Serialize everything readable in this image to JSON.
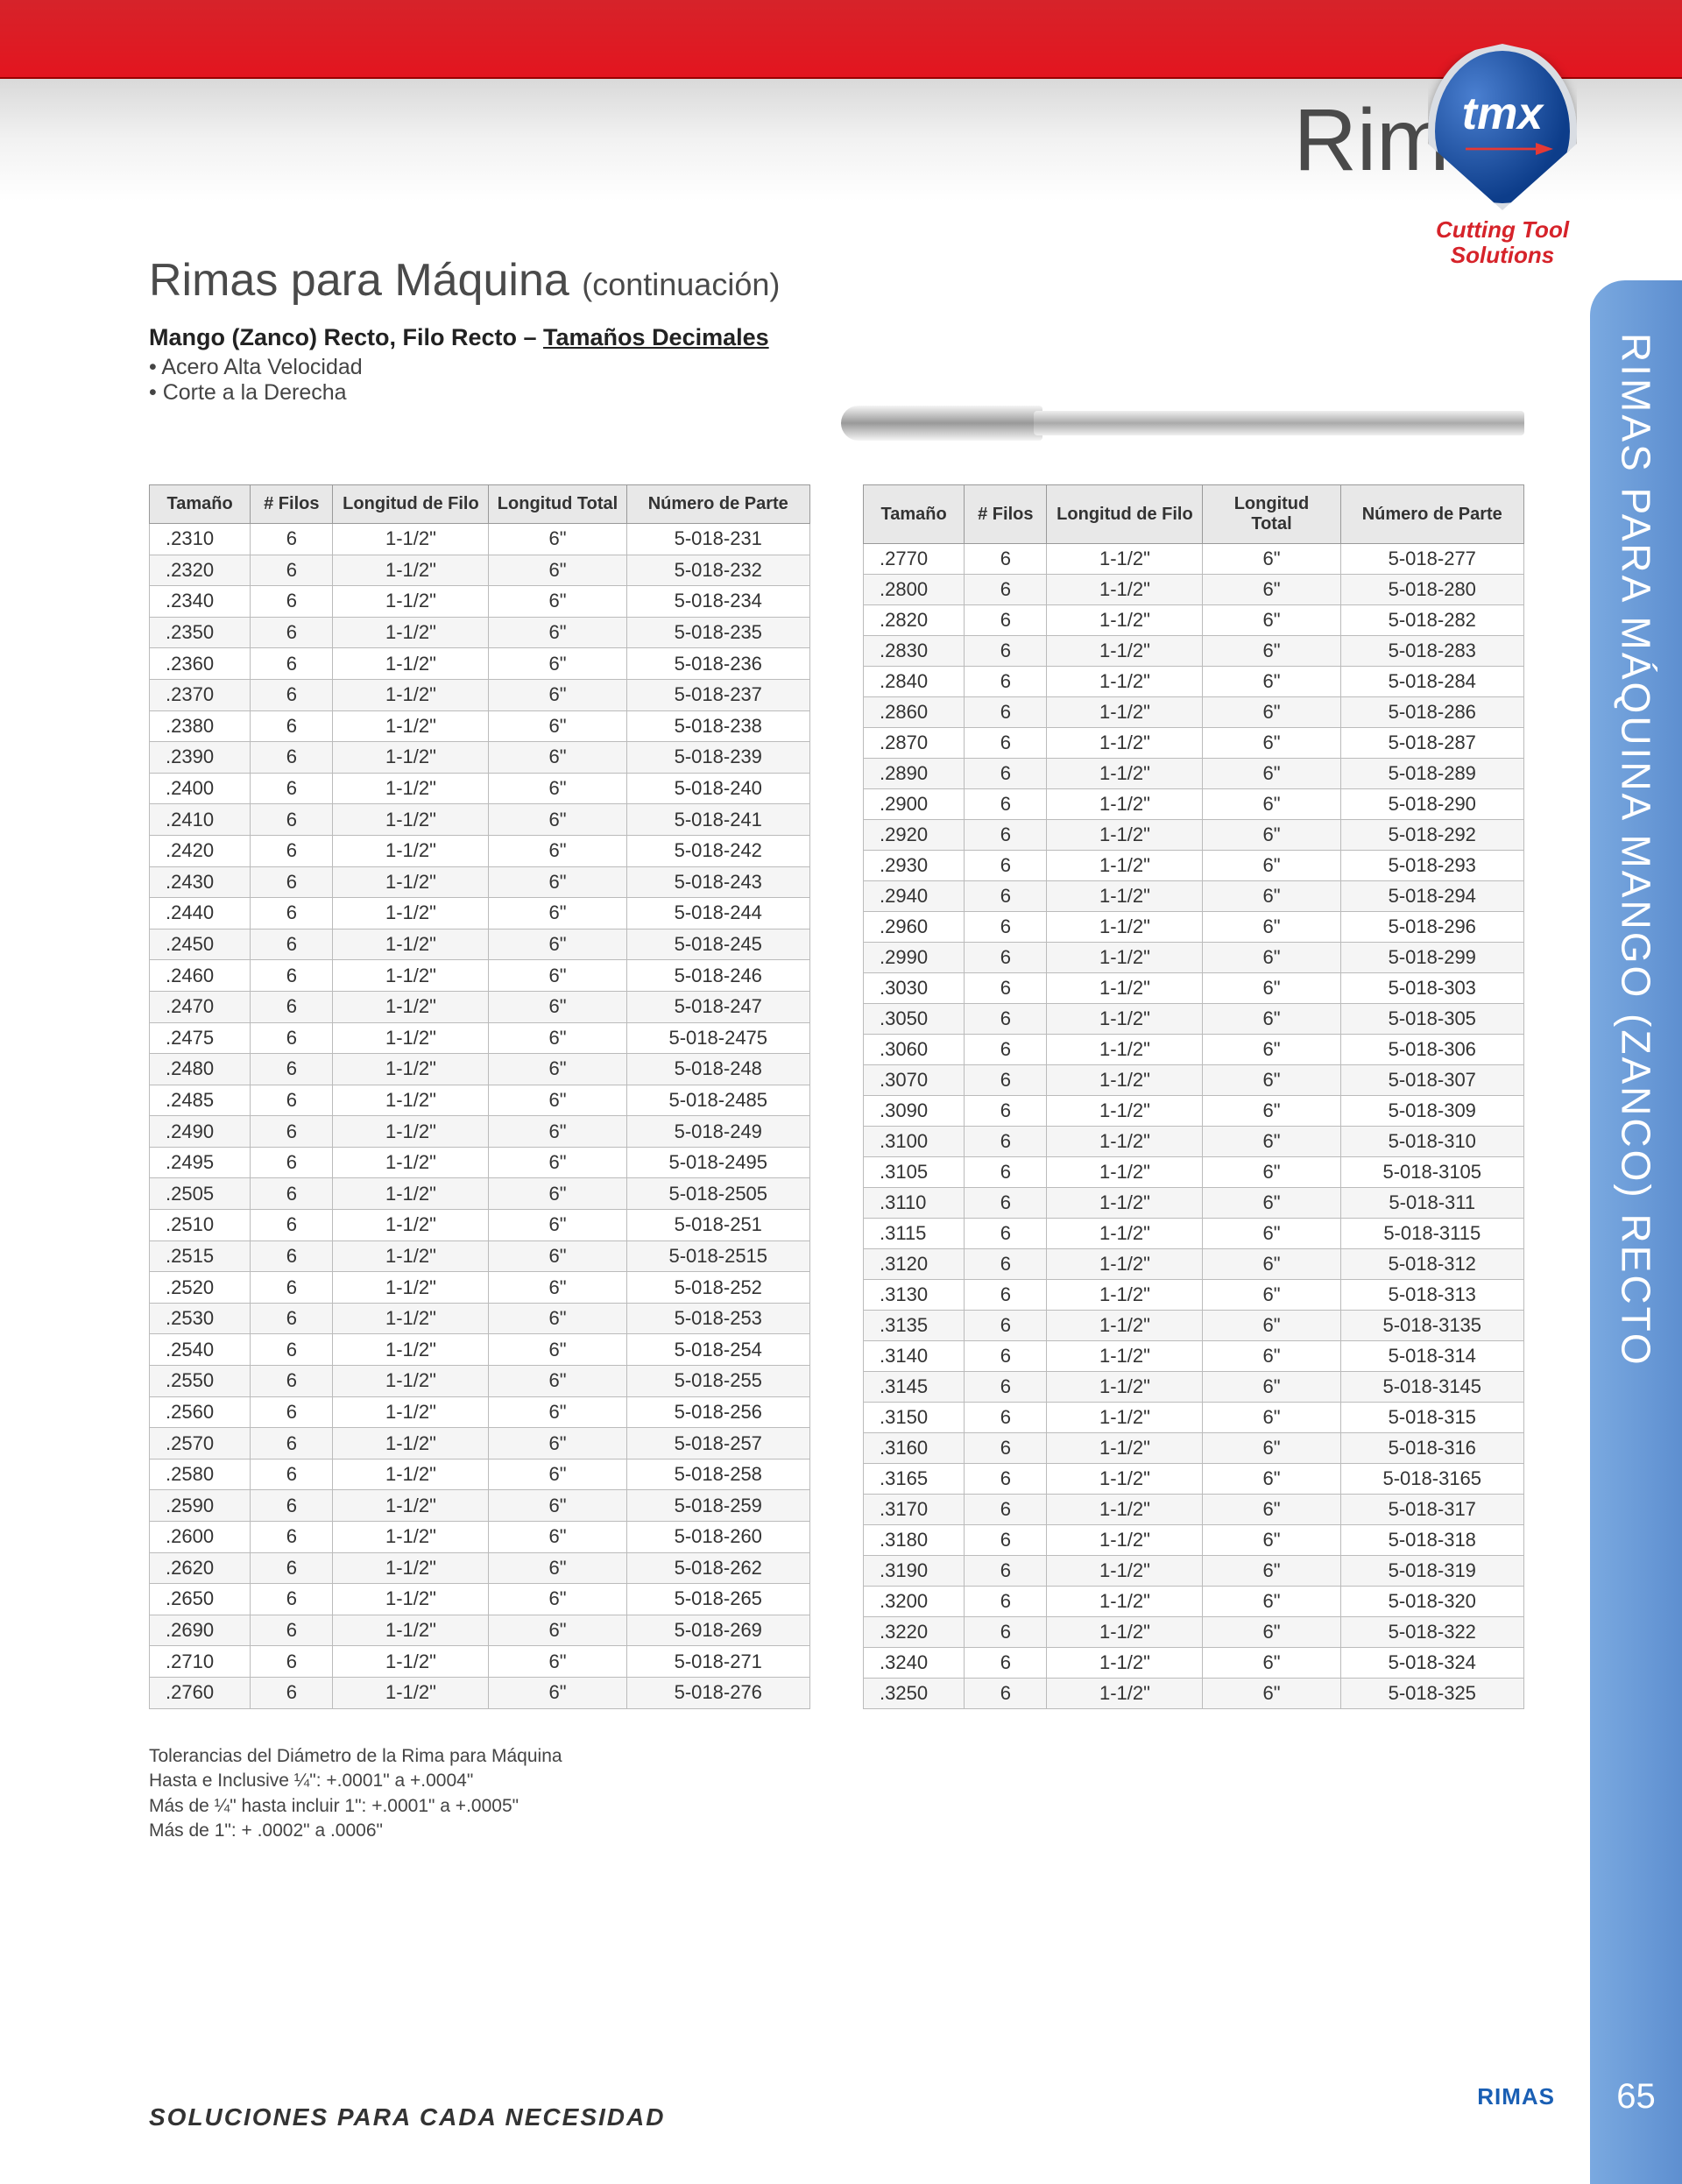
{
  "header": {
    "category": "Rimas",
    "logo_text": "tmx",
    "logo_subtitle_1": "Cutting Tool",
    "logo_subtitle_2": "Solutions"
  },
  "sidetab": "RIMAS PARA MÁQUINA MANGO (ZANCO) RECTO",
  "title": {
    "main": "Rimas para Máquina",
    "cont": "(continuación)"
  },
  "subtitle": {
    "line1a": "Mango (Zanco) Recto, Filo Recto – ",
    "line1b": "Tamaños Decimales",
    "bullet1": "Acero Alta Velocidad",
    "bullet2": "Corte a la Derecha"
  },
  "table_headers": {
    "tamano": "Tamaño",
    "filos": "# Filos",
    "long_filo": "Longitud de Filo",
    "long_total": "Longitud Total",
    "long_total_2line_a": "Longitud",
    "long_total_2line_b": "Total",
    "num_parte": "Número de Parte"
  },
  "left_table": [
    [
      ".2310",
      "6",
      "1-1/2\"",
      "6\"",
      "5-018-231"
    ],
    [
      ".2320",
      "6",
      "1-1/2\"",
      "6\"",
      "5-018-232"
    ],
    [
      ".2340",
      "6",
      "1-1/2\"",
      "6\"",
      "5-018-234"
    ],
    [
      ".2350",
      "6",
      "1-1/2\"",
      "6\"",
      "5-018-235"
    ],
    [
      ".2360",
      "6",
      "1-1/2\"",
      "6\"",
      "5-018-236"
    ],
    [
      ".2370",
      "6",
      "1-1/2\"",
      "6\"",
      "5-018-237"
    ],
    [
      ".2380",
      "6",
      "1-1/2\"",
      "6\"",
      "5-018-238"
    ],
    [
      ".2390",
      "6",
      "1-1/2\"",
      "6\"",
      "5-018-239"
    ],
    [
      ".2400",
      "6",
      "1-1/2\"",
      "6\"",
      "5-018-240"
    ],
    [
      ".2410",
      "6",
      "1-1/2\"",
      "6\"",
      "5-018-241"
    ],
    [
      ".2420",
      "6",
      "1-1/2\"",
      "6\"",
      "5-018-242"
    ],
    [
      ".2430",
      "6",
      "1-1/2\"",
      "6\"",
      "5-018-243"
    ],
    [
      ".2440",
      "6",
      "1-1/2\"",
      "6\"",
      "5-018-244"
    ],
    [
      ".2450",
      "6",
      "1-1/2\"",
      "6\"",
      "5-018-245"
    ],
    [
      ".2460",
      "6",
      "1-1/2\"",
      "6\"",
      "5-018-246"
    ],
    [
      ".2470",
      "6",
      "1-1/2\"",
      "6\"",
      "5-018-247"
    ],
    [
      ".2475",
      "6",
      "1-1/2\"",
      "6\"",
      "5-018-2475"
    ],
    [
      ".2480",
      "6",
      "1-1/2\"",
      "6\"",
      "5-018-248"
    ],
    [
      ".2485",
      "6",
      "1-1/2\"",
      "6\"",
      "5-018-2485"
    ],
    [
      ".2490",
      "6",
      "1-1/2\"",
      "6\"",
      "5-018-249"
    ],
    [
      ".2495",
      "6",
      "1-1/2\"",
      "6\"",
      "5-018-2495"
    ],
    [
      ".2505",
      "6",
      "1-1/2\"",
      "6\"",
      "5-018-2505"
    ],
    [
      ".2510",
      "6",
      "1-1/2\"",
      "6\"",
      "5-018-251"
    ],
    [
      ".2515",
      "6",
      "1-1/2\"",
      "6\"",
      "5-018-2515"
    ],
    [
      ".2520",
      "6",
      "1-1/2\"",
      "6\"",
      "5-018-252"
    ],
    [
      ".2530",
      "6",
      "1-1/2\"",
      "6\"",
      "5-018-253"
    ],
    [
      ".2540",
      "6",
      "1-1/2\"",
      "6\"",
      "5-018-254"
    ],
    [
      ".2550",
      "6",
      "1-1/2\"",
      "6\"",
      "5-018-255"
    ],
    [
      ".2560",
      "6",
      "1-1/2\"",
      "6\"",
      "5-018-256"
    ],
    [
      ".2570",
      "6",
      "1-1/2\"",
      "6\"",
      "5-018-257"
    ],
    [
      ".2580",
      "6",
      "1-1/2\"",
      "6\"",
      "5-018-258"
    ],
    [
      ".2590",
      "6",
      "1-1/2\"",
      "6\"",
      "5-018-259"
    ],
    [
      ".2600",
      "6",
      "1-1/2\"",
      "6\"",
      "5-018-260"
    ],
    [
      ".2620",
      "6",
      "1-1/2\"",
      "6\"",
      "5-018-262"
    ],
    [
      ".2650",
      "6",
      "1-1/2\"",
      "6\"",
      "5-018-265"
    ],
    [
      ".2690",
      "6",
      "1-1/2\"",
      "6\"",
      "5-018-269"
    ],
    [
      ".2710",
      "6",
      "1-1/2\"",
      "6\"",
      "5-018-271"
    ],
    [
      ".2760",
      "6",
      "1-1/2\"",
      "6\"",
      "5-018-276"
    ]
  ],
  "right_table": [
    [
      ".2770",
      "6",
      "1-1/2\"",
      "6\"",
      "5-018-277"
    ],
    [
      ".2800",
      "6",
      "1-1/2\"",
      "6\"",
      "5-018-280"
    ],
    [
      ".2820",
      "6",
      "1-1/2\"",
      "6\"",
      "5-018-282"
    ],
    [
      ".2830",
      "6",
      "1-1/2\"",
      "6\"",
      "5-018-283"
    ],
    [
      ".2840",
      "6",
      "1-1/2\"",
      "6\"",
      "5-018-284"
    ],
    [
      ".2860",
      "6",
      "1-1/2\"",
      "6\"",
      "5-018-286"
    ],
    [
      ".2870",
      "6",
      "1-1/2\"",
      "6\"",
      "5-018-287"
    ],
    [
      ".2890",
      "6",
      "1-1/2\"",
      "6\"",
      "5-018-289"
    ],
    [
      ".2900",
      "6",
      "1-1/2\"",
      "6\"",
      "5-018-290"
    ],
    [
      ".2920",
      "6",
      "1-1/2\"",
      "6\"",
      "5-018-292"
    ],
    [
      ".2930",
      "6",
      "1-1/2\"",
      "6\"",
      "5-018-293"
    ],
    [
      ".2940",
      "6",
      "1-1/2\"",
      "6\"",
      "5-018-294"
    ],
    [
      ".2960",
      "6",
      "1-1/2\"",
      "6\"",
      "5-018-296"
    ],
    [
      ".2990",
      "6",
      "1-1/2\"",
      "6\"",
      "5-018-299"
    ],
    [
      ".3030",
      "6",
      "1-1/2\"",
      "6\"",
      "5-018-303"
    ],
    [
      ".3050",
      "6",
      "1-1/2\"",
      "6\"",
      "5-018-305"
    ],
    [
      ".3060",
      "6",
      "1-1/2\"",
      "6\"",
      "5-018-306"
    ],
    [
      ".3070",
      "6",
      "1-1/2\"",
      "6\"",
      "5-018-307"
    ],
    [
      ".3090",
      "6",
      "1-1/2\"",
      "6\"",
      "5-018-309"
    ],
    [
      ".3100",
      "6",
      "1-1/2\"",
      "6\"",
      "5-018-310"
    ],
    [
      ".3105",
      "6",
      "1-1/2\"",
      "6\"",
      "5-018-3105"
    ],
    [
      ".3110",
      "6",
      "1-1/2\"",
      "6\"",
      "5-018-311"
    ],
    [
      ".3115",
      "6",
      "1-1/2\"",
      "6\"",
      "5-018-3115"
    ],
    [
      ".3120",
      "6",
      "1-1/2\"",
      "6\"",
      "5-018-312"
    ],
    [
      ".3130",
      "6",
      "1-1/2\"",
      "6\"",
      "5-018-313"
    ],
    [
      ".3135",
      "6",
      "1-1/2\"",
      "6\"",
      "5-018-3135"
    ],
    [
      ".3140",
      "6",
      "1-1/2\"",
      "6\"",
      "5-018-314"
    ],
    [
      ".3145",
      "6",
      "1-1/2\"",
      "6\"",
      "5-018-3145"
    ],
    [
      ".3150",
      "6",
      "1-1/2\"",
      "6\"",
      "5-018-315"
    ],
    [
      ".3160",
      "6",
      "1-1/2\"",
      "6\"",
      "5-018-316"
    ],
    [
      ".3165",
      "6",
      "1-1/2\"",
      "6\"",
      "5-018-3165"
    ],
    [
      ".3170",
      "6",
      "1-1/2\"",
      "6\"",
      "5-018-317"
    ],
    [
      ".3180",
      "6",
      "1-1/2\"",
      "6\"",
      "5-018-318"
    ],
    [
      ".3190",
      "6",
      "1-1/2\"",
      "6\"",
      "5-018-319"
    ],
    [
      ".3200",
      "6",
      "1-1/2\"",
      "6\"",
      "5-018-320"
    ],
    [
      ".3220",
      "6",
      "1-1/2\"",
      "6\"",
      "5-018-322"
    ],
    [
      ".3240",
      "6",
      "1-1/2\"",
      "6\"",
      "5-018-324"
    ],
    [
      ".3250",
      "6",
      "1-1/2\"",
      "6\"",
      "5-018-325"
    ]
  ],
  "tolerances": {
    "line1": "Tolerancias del Diámetro de la Rima para Máquina",
    "line2": "Hasta e Inclusive ¼\": +.0001\" a +.0004\"",
    "line3": "Más de ¼\" hasta incluir 1\": +.0001\" a +.0005\"",
    "line4": "Más de 1\": + .0002\" a .0006\""
  },
  "footer": {
    "tagline": "SOLUCIONES PARA CADA NECESIDAD",
    "category": "RIMAS",
    "page": "65"
  },
  "colors": {
    "red": "#d6232a",
    "blue_tab": "#6b9bd6",
    "text": "#4a4a4a",
    "table_header_bg": "#e8e8e8",
    "table_stripe": "#f5f5f5",
    "border": "#bbbbbb"
  }
}
